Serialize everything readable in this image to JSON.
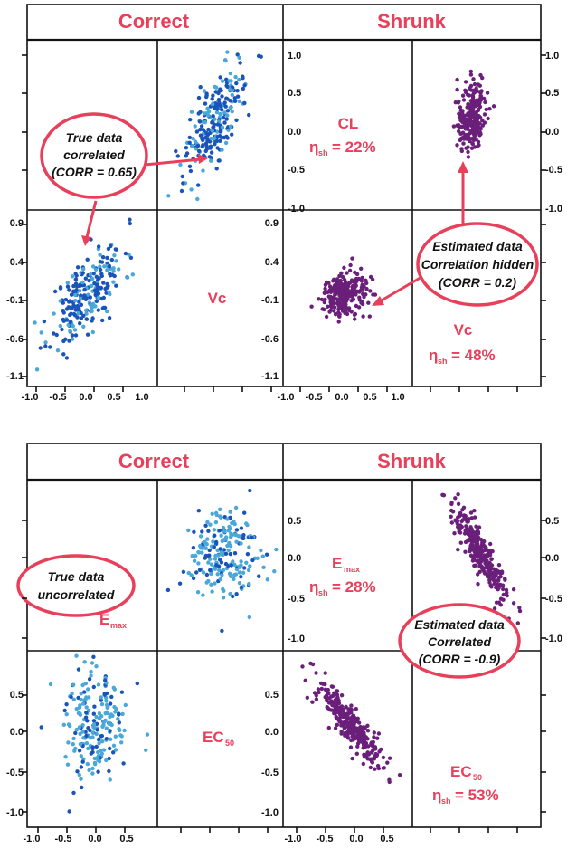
{
  "colors": {
    "accent": "#e8405a",
    "correct_dark": "#1a54b8",
    "correct_light": "#4aa8d8",
    "shrunk": "#6a1f7a",
    "frame": "#111111"
  },
  "headers": {
    "correct": "Correct",
    "shrunk": "Shrunk"
  },
  "top": {
    "var1": {
      "name": "CL",
      "eta_symbol": "η",
      "eta_sub": "sh",
      "eta_value": "= 22%"
    },
    "var2_correct": {
      "name": "Vc"
    },
    "var2_shrunk": {
      "name": "Vc",
      "eta_symbol": "η",
      "eta_sub": "sh",
      "eta_value": "= 48%"
    },
    "callout_true": [
      "True data",
      "correlated",
      "(CORR = 0.65)"
    ],
    "callout_est": [
      "Estimated data",
      "Correlation hidden",
      "(CORR = 0.2)"
    ]
  },
  "bottom": {
    "var1_correct": {
      "name": "E",
      "sub": "max"
    },
    "var1_shrunk": {
      "name": "E",
      "sub": "max",
      "eta_symbol": "η",
      "eta_sub": "sh",
      "eta_value": "= 28%"
    },
    "var2_correct": {
      "name": "EC",
      "sub": "50"
    },
    "var2_shrunk": {
      "name": "EC",
      "sub": "50",
      "eta_symbol": "η",
      "eta_sub": "sh",
      "eta_value": "= 53%"
    },
    "callout_true": [
      "True data",
      "uncorrelated"
    ],
    "callout_est": [
      "Estimated data",
      "Correlated",
      "(CORR = -0.9)"
    ]
  },
  "chart_data": [
    {
      "type": "scatter",
      "title": "Correct",
      "panel": "top",
      "xlabel": "CL",
      "ylabel": "Vc",
      "xlim": [
        -1.1,
        1.3
      ],
      "ylim": [
        -1.1,
        1.0
      ],
      "xticks": [
        "-1.0",
        "-0.5",
        "0.0",
        "0.5",
        "1.0"
      ],
      "yticks": [
        "0.9",
        "0.4",
        "-0.1",
        "-0.6",
        "-1.1"
      ],
      "correlation": 0.65,
      "n_points": 250,
      "x_sd": 0.35,
      "y_sd": 0.3,
      "series": [
        {
          "values": "bivariate-normal sample"
        }
      ]
    },
    {
      "type": "scatter",
      "title": "Shrunk",
      "panel": "top",
      "xlabel": "CL",
      "ylabel": "Vc",
      "xlim": [
        -1.1,
        1.3
      ],
      "ylim": [
        -1.1,
        1.0
      ],
      "xticks": [
        "-1.0",
        "-0.5",
        "0.0",
        "0.5",
        "1.0"
      ],
      "yticks": [
        "0.9",
        "0.4",
        "-0.1",
        "-0.6",
        "-1.1"
      ],
      "right_yticks": [
        "1.0",
        "0.5",
        "0.0",
        "-0.5",
        "-1.0"
      ],
      "correlation": 0.2,
      "n_points": 250,
      "x_sd": 0.22,
      "y_sd": 0.13,
      "series": [
        {
          "values": "bivariate-normal sample"
        }
      ]
    },
    {
      "type": "scatter",
      "title": "Correct",
      "panel": "bottom",
      "xlabel": "Emax",
      "ylabel": "EC50",
      "xlim": [
        -1.1,
        1.0
      ],
      "ylim": [
        -1.1,
        0.8
      ],
      "xticks": [
        "-1.0",
        "-0.5",
        "0.0",
        "0.5"
      ],
      "yticks": [
        "0.5",
        "0.0",
        "-0.5",
        "-1.0"
      ],
      "correlation": 0.0,
      "n_points": 220,
      "x_sd": 0.27,
      "y_sd": 0.3,
      "series": [
        {
          "values": "bivariate-normal sample"
        }
      ]
    },
    {
      "type": "scatter",
      "title": "Shrunk",
      "panel": "bottom",
      "xlabel": "Emax",
      "ylabel": "EC50",
      "xlim": [
        -1.1,
        1.0
      ],
      "ylim": [
        -1.1,
        0.8
      ],
      "xticks": [
        "-1.0",
        "-0.5",
        "0.0",
        "0.5"
      ],
      "yticks": [
        "0.5",
        "0.0",
        "-0.5",
        "-1.0"
      ],
      "right_yticks": [
        "0.5",
        "0.0",
        "-0.5",
        "-1.0"
      ],
      "correlation": -0.9,
      "n_points": 300,
      "x_sd": 0.3,
      "y_sd": 0.25,
      "series": [
        {
          "values": "bivariate-normal sample"
        }
      ]
    }
  ]
}
